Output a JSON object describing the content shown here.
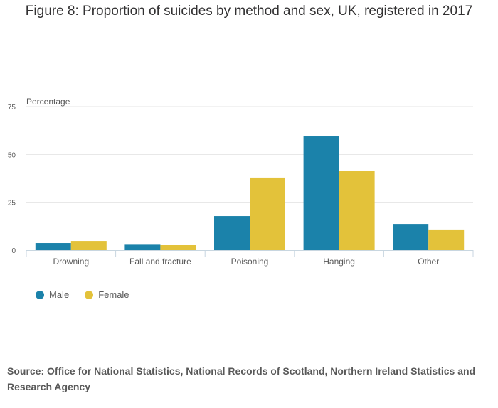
{
  "title": "Figure 8: Proportion of suicides by method and sex, UK, registered in 2017",
  "source": "Source: Office for National Statistics, National Records of Scotland, Northern Ireland Statistics and Research Agency",
  "colors": {
    "male": "#1b82aa",
    "female": "#e3c23a",
    "grid": "#e4e4e4",
    "axis": "#c8d6e0",
    "tick_text": "#595959"
  },
  "chart_data": {
    "type": "bar",
    "title": "Figure 8: Proportion of suicides by method and sex, UK, registered in 2017",
    "xlabel": "",
    "ylabel": "Percentage",
    "ylim": [
      0,
      75
    ],
    "yticks": [
      0,
      25,
      50,
      75
    ],
    "categories": [
      "Drowning",
      "Fall and fracture",
      "Poisoning",
      "Hanging",
      "Other"
    ],
    "series": [
      {
        "name": "Male",
        "values": [
          3.7,
          3.2,
          17.8,
          59.4,
          13.7
        ]
      },
      {
        "name": "Female",
        "values": [
          4.8,
          2.6,
          37.9,
          41.4,
          10.8
        ]
      }
    ],
    "grid": true,
    "legend": "bottom-left"
  }
}
